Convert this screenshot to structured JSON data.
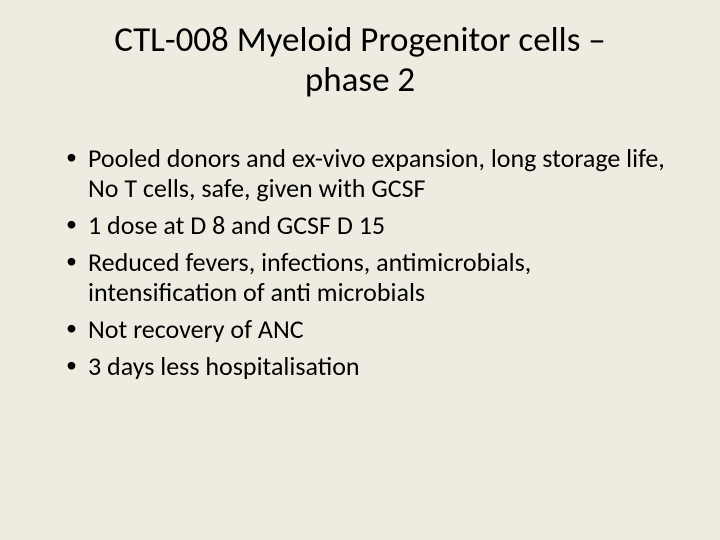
{
  "background_color": "#eeece1",
  "text_color": "#000000",
  "font_family": "Calibri",
  "title": {
    "line1": "CTL-008 Myeloid Progenitor cells –",
    "line2": "phase 2",
    "fontsize": 35,
    "align": "center"
  },
  "bullets": {
    "fontsize": 26,
    "marker": "•",
    "items": [
      "Pooled donors and ex-vivo expansion, long storage life, No T cells, safe, given with GCSF",
      "1 dose at D 8 and GCSF D 15",
      "Reduced fevers, infections, antimicrobials, intensification of anti microbials",
      "Not recovery of ANC",
      "3 days less hospitalisation"
    ]
  }
}
